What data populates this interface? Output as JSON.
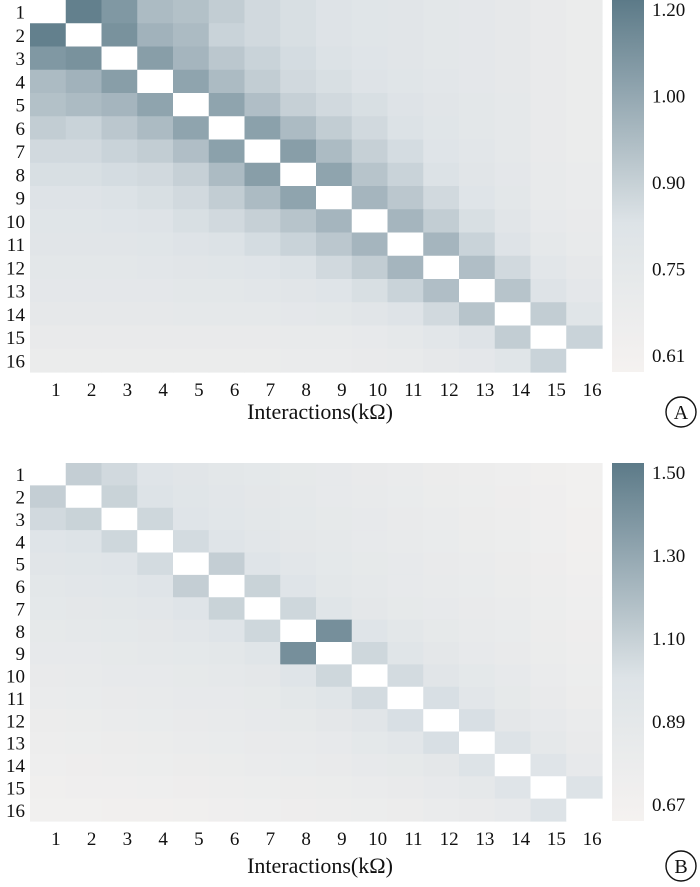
{
  "colors": {
    "low": "#f5f2f0",
    "mid": "#dde3e7",
    "high": "#5c7a88",
    "diagonal": "#ffffff"
  },
  "panels": [
    {
      "panel_label": "A",
      "xlabel": "Interactions(kΩ)",
      "tick_labels": [
        "1",
        "2",
        "3",
        "4",
        "5",
        "6",
        "7",
        "8",
        "9",
        "10",
        "11",
        "12",
        "13",
        "14",
        "15",
        "16"
      ],
      "colorbar": {
        "tick_labels": [
          "1.20",
          "1.00",
          "0.90",
          "0.75",
          "0.61"
        ],
        "range": [
          0.61,
          1.2
        ]
      }
    },
    {
      "panel_label": "B",
      "xlabel": "Interactions(kΩ)",
      "tick_labels": [
        "1",
        "2",
        "3",
        "4",
        "5",
        "6",
        "7",
        "8",
        "9",
        "10",
        "11",
        "12",
        "13",
        "14",
        "15",
        "16"
      ],
      "colorbar": {
        "tick_labels": [
          "1.50",
          "1.30",
          "1.10",
          "0.89",
          "0.67"
        ],
        "range": [
          0.67,
          1.5
        ]
      }
    }
  ],
  "chart_data": [
    {
      "type": "heatmap",
      "panel": "A",
      "xlabel": "Interactions(kΩ)",
      "categories": [
        "1",
        "2",
        "3",
        "4",
        "5",
        "6",
        "7",
        "8",
        "9",
        "10",
        "11",
        "12",
        "13",
        "14",
        "15",
        "16"
      ],
      "zlim": [
        0.61,
        1.2
      ],
      "colorbar_ticks": [
        1.2,
        1.0,
        0.9,
        0.75,
        0.61
      ],
      "matrix": [
        [
          null,
          1.18,
          1.1,
          0.98,
          0.96,
          0.92,
          0.88,
          0.86,
          0.84,
          0.82,
          0.81,
          0.79,
          0.78,
          0.76,
          0.73,
          0.71
        ],
        [
          1.18,
          null,
          1.12,
          1.01,
          0.98,
          0.9,
          0.88,
          0.86,
          0.84,
          0.82,
          0.81,
          0.79,
          0.78,
          0.76,
          0.73,
          0.71
        ],
        [
          1.1,
          1.12,
          null,
          1.08,
          1.0,
          0.94,
          0.9,
          0.87,
          0.85,
          0.83,
          0.81,
          0.79,
          0.78,
          0.76,
          0.73,
          0.71
        ],
        [
          0.98,
          1.01,
          1.08,
          null,
          1.06,
          0.98,
          0.92,
          0.88,
          0.86,
          0.84,
          0.82,
          0.8,
          0.78,
          0.76,
          0.73,
          0.71
        ],
        [
          0.96,
          0.98,
          1.0,
          1.06,
          null,
          1.06,
          0.97,
          0.91,
          0.88,
          0.86,
          0.84,
          0.81,
          0.79,
          0.77,
          0.73,
          0.71
        ],
        [
          0.92,
          0.9,
          0.94,
          0.98,
          1.06,
          null,
          1.07,
          0.98,
          0.92,
          0.88,
          0.85,
          0.82,
          0.79,
          0.77,
          0.73,
          0.71
        ],
        [
          0.88,
          0.88,
          0.9,
          0.92,
          0.97,
          1.07,
          null,
          1.08,
          0.98,
          0.91,
          0.87,
          0.83,
          0.8,
          0.77,
          0.73,
          0.71
        ],
        [
          0.86,
          0.86,
          0.87,
          0.88,
          0.91,
          0.98,
          1.08,
          null,
          1.06,
          0.95,
          0.9,
          0.85,
          0.81,
          0.78,
          0.74,
          0.72
        ],
        [
          0.84,
          0.84,
          0.85,
          0.86,
          0.88,
          0.92,
          0.98,
          1.06,
          null,
          1.0,
          0.94,
          0.88,
          0.83,
          0.79,
          0.74,
          0.72
        ],
        [
          0.82,
          0.82,
          0.83,
          0.84,
          0.86,
          0.88,
          0.91,
          0.95,
          1.0,
          null,
          1.0,
          0.92,
          0.86,
          0.81,
          0.75,
          0.73
        ],
        [
          0.81,
          0.81,
          0.81,
          0.82,
          0.84,
          0.85,
          0.87,
          0.9,
          0.94,
          1.0,
          null,
          1.0,
          0.9,
          0.84,
          0.77,
          0.74
        ],
        [
          0.79,
          0.79,
          0.79,
          0.8,
          0.81,
          0.82,
          0.83,
          0.85,
          0.88,
          0.92,
          1.0,
          null,
          0.97,
          0.88,
          0.8,
          0.76
        ],
        [
          0.78,
          0.78,
          0.78,
          0.78,
          0.79,
          0.79,
          0.8,
          0.81,
          0.83,
          0.86,
          0.9,
          0.97,
          null,
          0.95,
          0.84,
          0.78
        ],
        [
          0.76,
          0.76,
          0.76,
          0.76,
          0.77,
          0.77,
          0.77,
          0.78,
          0.79,
          0.81,
          0.84,
          0.88,
          0.95,
          null,
          0.92,
          0.82
        ],
        [
          0.73,
          0.73,
          0.73,
          0.73,
          0.73,
          0.73,
          0.73,
          0.74,
          0.74,
          0.75,
          0.77,
          0.8,
          0.84,
          0.92,
          null,
          0.9
        ],
        [
          0.71,
          0.71,
          0.71,
          0.71,
          0.71,
          0.71,
          0.71,
          0.72,
          0.72,
          0.73,
          0.74,
          0.76,
          0.78,
          0.82,
          0.9,
          null
        ]
      ]
    },
    {
      "type": "heatmap",
      "panel": "B",
      "xlabel": "Interactions(kΩ)",
      "categories": [
        "1",
        "2",
        "3",
        "4",
        "5",
        "6",
        "7",
        "8",
        "9",
        "10",
        "11",
        "12",
        "13",
        "14",
        "15",
        "16"
      ],
      "zlim": [
        0.67,
        1.5
      ],
      "colorbar_ticks": [
        1.5,
        1.3,
        1.1,
        0.89,
        0.67
      ],
      "matrix": [
        [
          null,
          1.1,
          1.05,
          0.98,
          0.95,
          0.92,
          0.9,
          0.88,
          0.86,
          0.84,
          0.82,
          0.8,
          0.78,
          0.76,
          0.74,
          0.72
        ],
        [
          1.1,
          null,
          1.08,
          1.0,
          0.96,
          0.93,
          0.91,
          0.89,
          0.87,
          0.85,
          0.83,
          0.81,
          0.79,
          0.77,
          0.75,
          0.72
        ],
        [
          1.05,
          1.08,
          null,
          1.06,
          0.98,
          0.94,
          0.92,
          0.9,
          0.88,
          0.86,
          0.84,
          0.82,
          0.8,
          0.78,
          0.75,
          0.73
        ],
        [
          0.98,
          1.0,
          1.06,
          null,
          1.04,
          0.97,
          0.93,
          0.91,
          0.89,
          0.87,
          0.85,
          0.83,
          0.81,
          0.79,
          0.76,
          0.73
        ],
        [
          0.95,
          0.96,
          0.98,
          1.04,
          null,
          1.1,
          0.98,
          0.93,
          0.9,
          0.88,
          0.86,
          0.84,
          0.82,
          0.8,
          0.77,
          0.74
        ],
        [
          0.92,
          0.93,
          0.94,
          0.97,
          1.1,
          null,
          1.08,
          0.97,
          0.92,
          0.89,
          0.87,
          0.85,
          0.83,
          0.81,
          0.78,
          0.75
        ],
        [
          0.9,
          0.91,
          0.92,
          0.93,
          0.98,
          1.08,
          null,
          1.06,
          0.96,
          0.91,
          0.88,
          0.86,
          0.84,
          0.82,
          0.79,
          0.76
        ],
        [
          0.88,
          0.89,
          0.9,
          0.91,
          0.93,
          0.97,
          1.06,
          null,
          1.4,
          0.98,
          0.92,
          0.88,
          0.85,
          0.83,
          0.8,
          0.77
        ],
        [
          0.86,
          0.87,
          0.88,
          0.89,
          0.9,
          0.92,
          0.96,
          1.4,
          null,
          1.06,
          0.96,
          0.91,
          0.87,
          0.84,
          0.81,
          0.78
        ],
        [
          0.84,
          0.85,
          0.86,
          0.87,
          0.88,
          0.89,
          0.91,
          0.98,
          1.06,
          null,
          1.04,
          0.95,
          0.9,
          0.86,
          0.82,
          0.79
        ],
        [
          0.82,
          0.83,
          0.84,
          0.85,
          0.86,
          0.87,
          0.88,
          0.92,
          0.96,
          1.04,
          null,
          1.02,
          0.93,
          0.88,
          0.84,
          0.8
        ],
        [
          0.8,
          0.81,
          0.82,
          0.83,
          0.84,
          0.85,
          0.86,
          0.88,
          0.91,
          0.95,
          1.02,
          null,
          1.02,
          0.91,
          0.86,
          0.82
        ],
        [
          0.78,
          0.79,
          0.8,
          0.81,
          0.82,
          0.83,
          0.84,
          0.85,
          0.87,
          0.9,
          0.93,
          1.02,
          null,
          1.0,
          0.89,
          0.84
        ],
        [
          0.76,
          0.77,
          0.78,
          0.79,
          0.8,
          0.81,
          0.82,
          0.83,
          0.84,
          0.86,
          0.88,
          0.91,
          1.0,
          null,
          0.98,
          0.87
        ],
        [
          0.74,
          0.75,
          0.75,
          0.76,
          0.77,
          0.78,
          0.79,
          0.8,
          0.81,
          0.82,
          0.84,
          0.86,
          0.89,
          0.98,
          null,
          1.0
        ],
        [
          0.72,
          0.72,
          0.73,
          0.73,
          0.74,
          0.75,
          0.76,
          0.77,
          0.78,
          0.79,
          0.8,
          0.82,
          0.84,
          0.87,
          1.0,
          null
        ]
      ]
    }
  ]
}
